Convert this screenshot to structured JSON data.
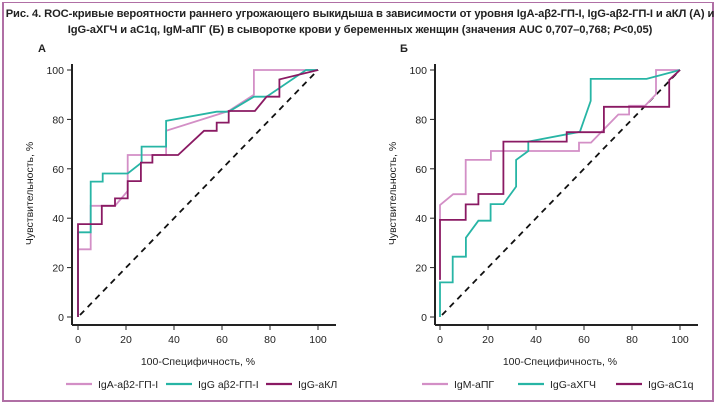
{
  "figure": {
    "title_line1": "Рис. 4. ROC-кривые вероятности раннего угрожающего выкидыша в зависимости от уровня IgA-aβ2-ГП-I, IgG-aβ2-ГП-I и аКЛ (А) и",
    "title_line2_pre": "IgG-aХГЧ и aC1q, IgM-aПГ (Б) в сыворотке крови у беременных женщин (значения AUC 0,707–0,768; ",
    "title_line2_p": "P",
    "title_line2_post": "<0,05)",
    "frame_color": "#b06fa5"
  },
  "chart_data": [
    {
      "type": "line",
      "panel_label": "А",
      "title": "",
      "xlabel": "100-Специфичность, %",
      "ylabel": "Чувствительность, %",
      "xlim": [
        0,
        100
      ],
      "ylim": [
        0,
        100
      ],
      "xticks": [
        0,
        20,
        40,
        60,
        80,
        100
      ],
      "yticks": [
        0,
        20,
        40,
        60,
        80,
        100
      ],
      "grid": false,
      "legend_position": "bottom",
      "reference_line": {
        "style": "dashed",
        "color": "#111111",
        "points": [
          [
            0,
            0
          ],
          [
            100,
            100
          ]
        ]
      },
      "series": [
        {
          "name": "IgA-aβ2-ГП-I",
          "color": "#d38fc6",
          "points": [
            [
              0,
              0
            ],
            [
              0,
              27.4
            ],
            [
              5.3,
              27.4
            ],
            [
              5.3,
              45
            ],
            [
              15.4,
              45
            ],
            [
              20.7,
              51
            ],
            [
              20.7,
              65.6
            ],
            [
              36.7,
              65.6
            ],
            [
              36.7,
              75.4
            ],
            [
              62.8,
              83.4
            ],
            [
              73.3,
              90
            ],
            [
              73.3,
              100
            ],
            [
              100,
              100
            ]
          ]
        },
        {
          "name": "IgG aβ2-ГП-I",
          "color": "#27b5a5",
          "points": [
            [
              0,
              0
            ],
            [
              0,
              34.3
            ],
            [
              5.3,
              34.3
            ],
            [
              5.3,
              54.8
            ],
            [
              10.3,
              54.8
            ],
            [
              10.3,
              58.1
            ],
            [
              20.7,
              58.1
            ],
            [
              26.5,
              62.5
            ],
            [
              26.5,
              69
            ],
            [
              36.7,
              69
            ],
            [
              36.7,
              79.4
            ],
            [
              57.8,
              83.1
            ],
            [
              62.8,
              83.1
            ],
            [
              73.3,
              89.2
            ],
            [
              78.6,
              89.2
            ],
            [
              95,
              100
            ],
            [
              100,
              100
            ]
          ]
        },
        {
          "name": "IgG-aКЛ",
          "color": "#8a1a63",
          "points": [
            [
              0,
              0
            ],
            [
              0,
              37.6
            ],
            [
              9.9,
              37.6
            ],
            [
              9.9,
              45
            ],
            [
              15.4,
              45
            ],
            [
              15.4,
              48
            ],
            [
              20.7,
              48
            ],
            [
              20.7,
              55
            ],
            [
              26.2,
              55
            ],
            [
              26.2,
              62.5
            ],
            [
              31,
              62.5
            ],
            [
              31,
              65.6
            ],
            [
              41.7,
              65.6
            ],
            [
              52.5,
              75.4
            ],
            [
              57.8,
              75.4
            ],
            [
              57.8,
              78.7
            ],
            [
              62.8,
              78.7
            ],
            [
              62.8,
              83.4
            ],
            [
              73.7,
              83.4
            ],
            [
              78.6,
              89.2
            ],
            [
              83.9,
              89.2
            ],
            [
              83.9,
              96.2
            ],
            [
              100,
              100
            ]
          ]
        }
      ]
    },
    {
      "type": "line",
      "panel_label": "Б",
      "title": "",
      "xlabel": "100-Специфичность, %",
      "ylabel": "Чувствительность, %",
      "xlim": [
        0,
        100
      ],
      "ylim": [
        0,
        100
      ],
      "xticks": [
        0,
        20,
        40,
        60,
        80,
        100
      ],
      "yticks": [
        0,
        20,
        40,
        60,
        80,
        100
      ],
      "grid": false,
      "legend_position": "bottom",
      "reference_line": {
        "style": "dashed",
        "color": "#111111",
        "points": [
          [
            0,
            0
          ],
          [
            100,
            100
          ]
        ]
      },
      "series": [
        {
          "name": "IgM-aПГ",
          "color": "#d38fc6",
          "points": [
            [
              0,
              39
            ],
            [
              0,
              45.3
            ],
            [
              5.5,
              49.7
            ],
            [
              10.7,
              49.7
            ],
            [
              10.7,
              63.6
            ],
            [
              21.2,
              63.6
            ],
            [
              21.2,
              67.2
            ],
            [
              57.9,
              67.2
            ],
            [
              57.9,
              70.6
            ],
            [
              62.9,
              70.6
            ],
            [
              74.3,
              82
            ],
            [
              78.8,
              82
            ],
            [
              78.8,
              85.5
            ],
            [
              85.4,
              85.5
            ],
            [
              90,
              90.2
            ],
            [
              90,
              100
            ],
            [
              100,
              100
            ]
          ]
        },
        {
          "name": "IgG-aХГЧ",
          "color": "#27b5a5",
          "points": [
            [
              0,
              0
            ],
            [
              0,
              14
            ],
            [
              5.3,
              14
            ],
            [
              5.3,
              24.4
            ],
            [
              10.8,
              24.4
            ],
            [
              10.8,
              32.1
            ],
            [
              16,
              39
            ],
            [
              21.1,
              39
            ],
            [
              21.1,
              45.7
            ],
            [
              26.4,
              45.7
            ],
            [
              31.7,
              52.8
            ],
            [
              31.7,
              63.6
            ],
            [
              36.8,
              67.2
            ],
            [
              36.8,
              71
            ],
            [
              58.3,
              75
            ],
            [
              62.8,
              87.5
            ],
            [
              62.8,
              96.4
            ],
            [
              86.1,
              96.4
            ],
            [
              100,
              100
            ]
          ]
        },
        {
          "name": "IgG-aC1q",
          "color": "#8a1a63",
          "points": [
            [
              0,
              15
            ],
            [
              0,
              39.3
            ],
            [
              10.7,
              39.3
            ],
            [
              10.7,
              45.6
            ],
            [
              16,
              45.6
            ],
            [
              16,
              49.8
            ],
            [
              26.4,
              49.8
            ],
            [
              26.4,
              71
            ],
            [
              52.8,
              71
            ],
            [
              52.8,
              74.8
            ],
            [
              68.3,
              74.8
            ],
            [
              68.3,
              85.1
            ],
            [
              95.5,
              85.1
            ],
            [
              95.5,
              96
            ],
            [
              100,
              100
            ]
          ]
        }
      ]
    }
  ]
}
